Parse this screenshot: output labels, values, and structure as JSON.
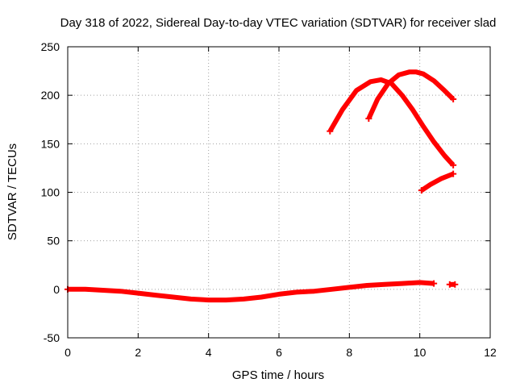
{
  "chart_data": {
    "type": "line",
    "title": "Day 318 of 2022, Sidereal Day-to-day VTEC variation (SDTVAR) for receiver slad",
    "xlabel": "GPS time / hours",
    "ylabel": "SDTVAR / TECUs",
    "xlim": [
      0,
      12
    ],
    "ylim": [
      -50,
      250
    ],
    "xticks": [
      "0",
      "2",
      "4",
      "6",
      "8",
      "10",
      "12"
    ],
    "yticks": [
      "-50",
      "0",
      "50",
      "100",
      "150",
      "200",
      "250"
    ],
    "grid": true,
    "legend": "none",
    "color": "#ff0000",
    "series": [
      {
        "x": [
          0.0,
          0.5,
          1.0,
          1.5,
          2.0,
          2.5,
          3.0,
          3.5,
          4.0,
          4.5,
          5.0,
          5.5,
          6.0,
          6.5,
          7.0,
          7.5,
          8.0,
          8.5,
          9.0,
          9.5,
          10.0,
          10.4
        ],
        "y": [
          0,
          0,
          -1,
          -2,
          -4,
          -6,
          -8,
          -10,
          -11,
          -11,
          -10,
          -8,
          -5,
          -3,
          -2,
          0,
          2,
          4,
          5,
          6,
          7,
          6
        ]
      },
      {
        "x": [
          10.85,
          11.0
        ],
        "y": [
          5,
          5
        ]
      },
      {
        "x": [
          7.45,
          7.8,
          8.2,
          8.6,
          8.9,
          9.2,
          9.5,
          9.8,
          10.1,
          10.4,
          10.7,
          10.95
        ],
        "y": [
          163,
          185,
          205,
          214,
          216,
          212,
          200,
          185,
          168,
          152,
          138,
          128
        ]
      },
      {
        "x": [
          8.55,
          8.8,
          9.1,
          9.4,
          9.7,
          9.9,
          10.1,
          10.4,
          10.7,
          10.95
        ],
        "y": [
          176,
          196,
          212,
          221,
          224,
          224,
          222,
          215,
          205,
          196
        ]
      },
      {
        "x": [
          10.05,
          10.3,
          10.6,
          10.95
        ],
        "y": [
          102,
          108,
          114,
          119
        ]
      }
    ]
  }
}
